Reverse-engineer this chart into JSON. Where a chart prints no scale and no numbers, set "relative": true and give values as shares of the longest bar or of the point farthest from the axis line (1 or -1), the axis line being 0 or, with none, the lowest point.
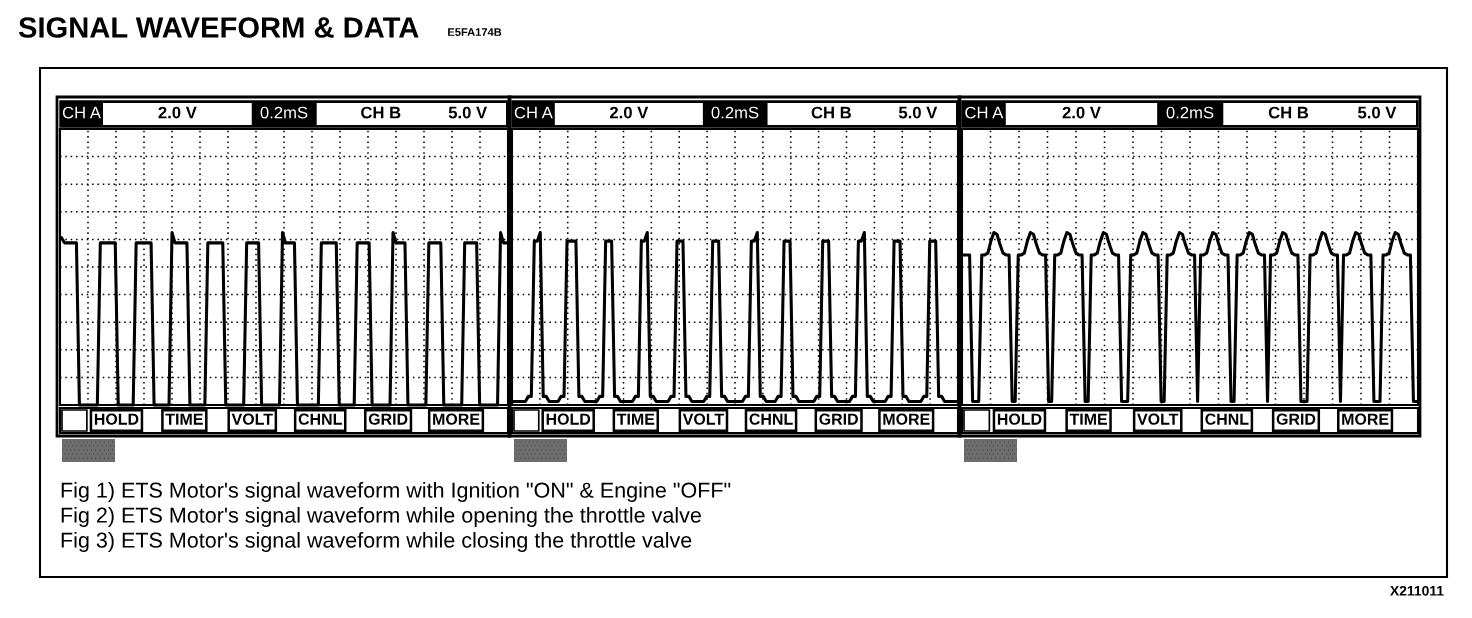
{
  "chart_data": [
    {
      "type": "line",
      "title": "SIGNAL WAVEFORM & DATA",
      "subtitle": "E5FA174B",
      "relative": true,
      "grid": true,
      "tick_labels": false,
      "categories": [
        null,
        null,
        null,
        null,
        null,
        null,
        null,
        null,
        null,
        null,
        null,
        null,
        null,
        null,
        null,
        null,
        null,
        null,
        null,
        null,
        null,
        null,
        null,
        null,
        null,
        null,
        null,
        null,
        null,
        null,
        null,
        null,
        null,
        null,
        null,
        null,
        null,
        null,
        null,
        null,
        null,
        null,
        null,
        null,
        null,
        null,
        null,
        null,
        null,
        null,
        null,
        null,
        null,
        null,
        null,
        null,
        null,
        null,
        null,
        null,
        null,
        null,
        null,
        null,
        null,
        null,
        null,
        null,
        null,
        null,
        null,
        null,
        null,
        null,
        null,
        null,
        null,
        null,
        null,
        null,
        null,
        null,
        null,
        null,
        null,
        null,
        null,
        null,
        null,
        null,
        null,
        null,
        null,
        null,
        null,
        null,
        null,
        null,
        null,
        null,
        null,
        null,
        null,
        null,
        null,
        null,
        null,
        null,
        null,
        null,
        null,
        null,
        null,
        null,
        null,
        null,
        null,
        null,
        null,
        null,
        null,
        null,
        null,
        null,
        null,
        null,
        null,
        null,
        null,
        null,
        null,
        null,
        null,
        null,
        null,
        null,
        null,
        null,
        null,
        null,
        null,
        null,
        null,
        null,
        null,
        null,
        null,
        null,
        null,
        null
      ],
      "series": [
        {
          "color": "#000000",
          "values": [
            0.97,
            0.94,
            0.94,
            0.94,
            0.94,
            0.94,
            0,
            0,
            0,
            0,
            0,
            0,
            0,
            0.94,
            0.94,
            0.94,
            0.94,
            0.94,
            0.94,
            0,
            0,
            0,
            0,
            0,
            0,
            0.94,
            0.94,
            0.94,
            0.94,
            0.94,
            0.94,
            0,
            0,
            0,
            0,
            0,
            0,
            1,
            0.94,
            0.94,
            0.94,
            0.94,
            0.94,
            0,
            0,
            0,
            0,
            0,
            0,
            0.94,
            0.94,
            0.94,
            0.94,
            0.94,
            0.94,
            0,
            0,
            0,
            0,
            0,
            0,
            0,
            0.94,
            0.94,
            0.94,
            0.94,
            0.94,
            0,
            0,
            0,
            0,
            0,
            0,
            0,
            1,
            0.94,
            0.94,
            0.94,
            0.94,
            0,
            0,
            0,
            0,
            0,
            0,
            0,
            0,
            0.94,
            0.94,
            0.94,
            0.94,
            0.94,
            0.94,
            0,
            0,
            0,
            0,
            0,
            0,
            0.94,
            0.94,
            0.94,
            0.94,
            0.94,
            0,
            0,
            0,
            0,
            0,
            0,
            0,
            1,
            0.94,
            0.94,
            0.94,
            0.94,
            0,
            0,
            0,
            0,
            0,
            0,
            0,
            0.94,
            0.94,
            0.94,
            0.94,
            0.94,
            0,
            0,
            0,
            0,
            0,
            0,
            0,
            0.94,
            0.94,
            0.94,
            0.94,
            0.94,
            0,
            0,
            0,
            0,
            0,
            0,
            0,
            1,
            0.94,
            0.94
          ]
        }
      ],
      "annotations": [
        "CH A",
        "2.0 V",
        "0.2mS",
        "CH B",
        "5.0 V",
        "HOLD",
        "TIME",
        "VOLT",
        "CHNL",
        "GRID",
        "MORE",
        "Fig 1) ETS Motor's signal waveform with Ignition \"ON\" & Engine \"OFF\""
      ]
    },
    {
      "type": "line",
      "relative": true,
      "grid": true,
      "tick_labels": false,
      "categories": [
        null,
        null,
        null,
        null,
        null,
        null,
        null,
        null,
        null,
        null,
        null,
        null,
        null,
        null,
        null,
        null,
        null,
        null,
        null,
        null,
        null,
        null,
        null,
        null,
        null,
        null,
        null,
        null,
        null,
        null,
        null,
        null,
        null,
        null,
        null,
        null,
        null,
        null,
        null,
        null,
        null,
        null,
        null,
        null,
        null,
        null,
        null,
        null,
        null,
        null,
        null,
        null,
        null,
        null,
        null,
        null,
        null,
        null,
        null,
        null,
        null,
        null,
        null,
        null,
        null,
        null,
        null,
        null,
        null,
        null,
        null,
        null,
        null,
        null,
        null,
        null,
        null,
        null,
        null,
        null,
        null,
        null,
        null,
        null,
        null,
        null,
        null,
        null,
        null,
        null,
        null,
        null,
        null,
        null,
        null,
        null,
        null,
        null,
        null,
        null,
        null,
        null,
        null,
        null,
        null,
        null,
        null,
        null,
        null,
        null,
        null,
        null,
        null,
        null,
        null,
        null,
        null,
        null,
        null,
        null,
        null,
        null,
        null,
        null,
        null,
        null,
        null,
        null,
        null,
        null,
        null,
        null,
        null,
        null,
        null,
        null,
        null,
        null,
        null,
        null,
        null,
        null,
        null,
        null,
        null,
        null,
        null,
        null,
        null,
        null
      ],
      "series": [
        {
          "color": "#000000",
          "values": [
            0.02,
            0.02,
            0.02,
            0.02,
            0.02,
            0.05,
            0.05,
            0.95,
            0.95,
            1,
            0.05,
            0.05,
            0.02,
            0.02,
            0.02,
            0.02,
            0.05,
            0.05,
            0.95,
            0.95,
            0.95,
            0.95,
            0.05,
            0.05,
            0.02,
            0.02,
            0.02,
            0.02,
            0.02,
            0.05,
            0.05,
            0.95,
            0.95,
            0.95,
            0.05,
            0.05,
            0.02,
            0.02,
            0.02,
            0.02,
            0.02,
            0.05,
            0.05,
            0.95,
            0.95,
            1,
            0.05,
            0.05,
            0.02,
            0.02,
            0.02,
            0.02,
            0.02,
            0.05,
            0.05,
            0.95,
            0.95,
            0.95,
            0.05,
            0.05,
            0.02,
            0.02,
            0.02,
            0.02,
            0.02,
            0.05,
            0.05,
            0.95,
            0.95,
            0.95,
            0.05,
            0.05,
            0.02,
            0.02,
            0.02,
            0.02,
            0.02,
            0.02,
            0.05,
            0.05,
            0.95,
            0.95,
            1,
            0.05,
            0.05,
            0.02,
            0.02,
            0.02,
            0.02,
            0.05,
            0.05,
            0.95,
            0.95,
            0.95,
            0.05,
            0.05,
            0.02,
            0.02,
            0.02,
            0.02,
            0.02,
            0.02,
            0.05,
            0.05,
            0.95,
            0.95,
            0.95,
            0.05,
            0.05,
            0.02,
            0.02,
            0.02,
            0.02,
            0.02,
            0.05,
            0.05,
            0.95,
            0.95,
            1,
            0.05,
            0.05,
            0.02,
            0.02,
            0.02,
            0.02,
            0.02,
            0.05,
            0.05,
            0.95,
            0.95,
            0.95,
            0.05,
            0.05,
            0.02,
            0.02,
            0.02,
            0.02,
            0.02,
            0.05,
            0.05,
            0.95,
            0.95,
            0.95,
            0.05,
            0.05,
            0.02,
            0.02,
            0.02,
            0.02,
            0.02
          ]
        }
      ],
      "annotations": [
        "CH A",
        "2.0 V",
        "0.2mS",
        "CH B",
        "5.0 V",
        "HOLD",
        "TIME",
        "VOLT",
        "CHNL",
        "GRID",
        "MORE",
        "Fig 2) ETS Motor's signal waveform while opening the throttle valve"
      ]
    },
    {
      "type": "line",
      "relative": true,
      "grid": true,
      "tick_labels": false,
      "categories": [
        null,
        null,
        null,
        null,
        null,
        null,
        null,
        null,
        null,
        null,
        null,
        null,
        null,
        null,
        null,
        null,
        null,
        null,
        null,
        null,
        null,
        null,
        null,
        null,
        null,
        null,
        null,
        null,
        null,
        null,
        null,
        null,
        null,
        null,
        null,
        null,
        null,
        null,
        null,
        null,
        null,
        null,
        null,
        null,
        null,
        null,
        null,
        null,
        null,
        null,
        null,
        null,
        null,
        null,
        null,
        null,
        null,
        null,
        null,
        null,
        null,
        null,
        null,
        null,
        null,
        null,
        null,
        null,
        null,
        null,
        null,
        null,
        null,
        null,
        null,
        null,
        null,
        null,
        null,
        null,
        null,
        null,
        null,
        null,
        null,
        null,
        null,
        null,
        null,
        null,
        null,
        null,
        null,
        null,
        null,
        null,
        null,
        null,
        null,
        null,
        null,
        null,
        null,
        null,
        null,
        null,
        null,
        null,
        null,
        null,
        null,
        null,
        null,
        null,
        null,
        null,
        null,
        null,
        null,
        null,
        null,
        null,
        null,
        null,
        null,
        null,
        null,
        null,
        null,
        null,
        null,
        null,
        null,
        null,
        null,
        null,
        null,
        null,
        null,
        null,
        null,
        null,
        null,
        null,
        null,
        null,
        null,
        null,
        null,
        null
      ],
      "series": [
        {
          "color": "#000000",
          "values": [
            0.87,
            0.87,
            0.87,
            0.02,
            0.02,
            0.02,
            0.87,
            0.87,
            0.88,
            0.95,
            1,
            0.99,
            0.93,
            0.88,
            0.87,
            0.87,
            0.02,
            0.02,
            0.87,
            0.87,
            0.88,
            0.95,
            1,
            0.99,
            0.93,
            0.88,
            0.87,
            0.87,
            0.02,
            0.02,
            0.87,
            0.87,
            0.88,
            0.95,
            1,
            0.99,
            0.93,
            0.88,
            0.87,
            0.87,
            0.02,
            0.02,
            0.87,
            0.87,
            0.88,
            0.95,
            1,
            0.99,
            0.93,
            0.88,
            0.87,
            0.87,
            0.02,
            0.02,
            0.02,
            0.87,
            0.87,
            0.88,
            0.95,
            1,
            0.99,
            0.93,
            0.88,
            0.87,
            0.87,
            0.02,
            0.02,
            0.87,
            0.87,
            0.88,
            0.95,
            1,
            0.99,
            0.93,
            0.88,
            0.87,
            0.87,
            0.02,
            0.87,
            0.87,
            0.88,
            0.95,
            1,
            0.99,
            0.93,
            0.88,
            0.87,
            0.87,
            0.02,
            0.02,
            0.87,
            0.87,
            0.88,
            0.95,
            1,
            0.99,
            0.93,
            0.88,
            0.87,
            0.87,
            0.02,
            0.87,
            0.87,
            0.88,
            0.95,
            1,
            0.99,
            0.93,
            0.88,
            0.87,
            0.87,
            0.02,
            0.02,
            0.02,
            0.87,
            0.87,
            0.88,
            0.95,
            1,
            0.99,
            0.93,
            0.88,
            0.87,
            0.87,
            0.02,
            0.87,
            0.87,
            0.88,
            0.95,
            1,
            0.99,
            0.93,
            0.88,
            0.87,
            0.87,
            0.02,
            0.02,
            0.02,
            0.87,
            0.87,
            0.88,
            0.95,
            1,
            0.99,
            0.93,
            0.88,
            0.87,
            0.87,
            0.02,
            0.02
          ]
        }
      ],
      "annotations": [
        "CH A",
        "2.0 V",
        "0.2mS",
        "CH B",
        "5.0 V",
        "HOLD",
        "TIME",
        "VOLT",
        "CHNL",
        "GRID",
        "MORE",
        "Fig 3) ETS Motor's signal waveform while closing the throttle valve",
        "X211011"
      ]
    }
  ]
}
